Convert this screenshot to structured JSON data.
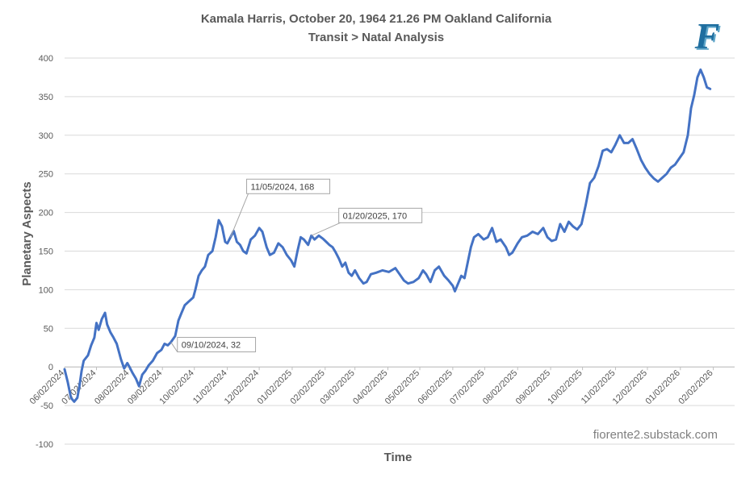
{
  "chart_data": {
    "type": "line",
    "title": "Kamala Harris, October 20, 1964 21.26 PM Oakland California",
    "subtitle": "Transit > Natal Analysis",
    "xlabel": "Time",
    "ylabel": "Planetary Aspects",
    "ylim": [
      -100,
      400
    ],
    "yticks": [
      -100,
      -50,
      0,
      50,
      100,
      150,
      200,
      250,
      300,
      350,
      400
    ],
    "xlim": [
      "2024-06-02",
      "2026-02-22"
    ],
    "xticks": [
      "06/02/2024",
      "07/02/2024",
      "08/02/2024",
      "09/02/2024",
      "10/02/2024",
      "11/02/2024",
      "12/02/2024",
      "01/02/2025",
      "02/02/2025",
      "03/02/2025",
      "04/02/2025",
      "05/02/2025",
      "06/02/2025",
      "07/02/2025",
      "08/02/2025",
      "09/02/2025",
      "10/02/2025",
      "11/02/2025",
      "12/02/2025",
      "01/02/2026",
      "02/02/2026"
    ],
    "grid": true,
    "line_color": "#4472C4",
    "series": [
      {
        "points": [
          [
            "2024-06-02",
            -3
          ],
          [
            "2024-06-05",
            -20
          ],
          [
            "2024-06-08",
            -40
          ],
          [
            "2024-06-11",
            -45
          ],
          [
            "2024-06-14",
            -40
          ],
          [
            "2024-06-16",
            -25
          ],
          [
            "2024-06-18",
            -5
          ],
          [
            "2024-06-20",
            8
          ],
          [
            "2024-06-24",
            15
          ],
          [
            "2024-06-27",
            28
          ],
          [
            "2024-06-30",
            38
          ],
          [
            "2024-07-02",
            57
          ],
          [
            "2024-07-04",
            48
          ],
          [
            "2024-07-07",
            62
          ],
          [
            "2024-07-10",
            70
          ],
          [
            "2024-07-12",
            55
          ],
          [
            "2024-07-15",
            45
          ],
          [
            "2024-07-18",
            38
          ],
          [
            "2024-07-21",
            30
          ],
          [
            "2024-07-23",
            20
          ],
          [
            "2024-07-25",
            10
          ],
          [
            "2024-07-28",
            -2
          ],
          [
            "2024-07-31",
            5
          ],
          [
            "2024-08-02",
            0
          ],
          [
            "2024-08-05",
            -8
          ],
          [
            "2024-08-08",
            -15
          ],
          [
            "2024-08-11",
            -25
          ],
          [
            "2024-08-14",
            -10
          ],
          [
            "2024-08-17",
            -5
          ],
          [
            "2024-08-20",
            2
          ],
          [
            "2024-08-24",
            8
          ],
          [
            "2024-08-28",
            18
          ],
          [
            "2024-09-01",
            22
          ],
          [
            "2024-09-04",
            30
          ],
          [
            "2024-09-07",
            28
          ],
          [
            "2024-09-10",
            32
          ],
          [
            "2024-09-14",
            40
          ],
          [
            "2024-09-17",
            60
          ],
          [
            "2024-09-20",
            70
          ],
          [
            "2024-09-23",
            80
          ],
          [
            "2024-09-27",
            85
          ],
          [
            "2024-10-01",
            90
          ],
          [
            "2024-10-03",
            100
          ],
          [
            "2024-10-06",
            118
          ],
          [
            "2024-10-09",
            125
          ],
          [
            "2024-10-12",
            130
          ],
          [
            "2024-10-15",
            145
          ],
          [
            "2024-10-19",
            150
          ],
          [
            "2024-10-22",
            168
          ],
          [
            "2024-10-25",
            190
          ],
          [
            "2024-10-28",
            182
          ],
          [
            "2024-10-31",
            162
          ],
          [
            "2024-11-02",
            160
          ],
          [
            "2024-11-05",
            168
          ],
          [
            "2024-11-08",
            176
          ],
          [
            "2024-11-11",
            162
          ],
          [
            "2024-11-14",
            158
          ],
          [
            "2024-11-17",
            150
          ],
          [
            "2024-11-20",
            147
          ],
          [
            "2024-11-24",
            165
          ],
          [
            "2024-11-28",
            170
          ],
          [
            "2024-12-02",
            180
          ],
          [
            "2024-12-05",
            175
          ],
          [
            "2024-12-09",
            155
          ],
          [
            "2024-12-12",
            145
          ],
          [
            "2024-12-16",
            148
          ],
          [
            "2024-12-20",
            160
          ],
          [
            "2024-12-24",
            155
          ],
          [
            "2024-12-28",
            145
          ],
          [
            "2025-01-01",
            138
          ],
          [
            "2025-01-04",
            130
          ],
          [
            "2025-01-07",
            150
          ],
          [
            "2025-01-10",
            168
          ],
          [
            "2025-01-13",
            165
          ],
          [
            "2025-01-17",
            158
          ],
          [
            "2025-01-20",
            170
          ],
          [
            "2025-01-23",
            165
          ],
          [
            "2025-01-27",
            170
          ],
          [
            "2025-01-31",
            166
          ],
          [
            "2025-02-03",
            162
          ],
          [
            "2025-02-06",
            158
          ],
          [
            "2025-02-09",
            155
          ],
          [
            "2025-02-12",
            148
          ],
          [
            "2025-02-15",
            140
          ],
          [
            "2025-02-18",
            130
          ],
          [
            "2025-02-21",
            135
          ],
          [
            "2025-02-24",
            122
          ],
          [
            "2025-02-27",
            118
          ],
          [
            "2025-03-02",
            125
          ],
          [
            "2025-03-06",
            115
          ],
          [
            "2025-03-10",
            108
          ],
          [
            "2025-03-13",
            110
          ],
          [
            "2025-03-17",
            120
          ],
          [
            "2025-03-22",
            122
          ],
          [
            "2025-03-28",
            125
          ],
          [
            "2025-04-03",
            123
          ],
          [
            "2025-04-09",
            128
          ],
          [
            "2025-04-13",
            120
          ],
          [
            "2025-04-17",
            112
          ],
          [
            "2025-04-21",
            108
          ],
          [
            "2025-04-26",
            110
          ],
          [
            "2025-05-01",
            115
          ],
          [
            "2025-05-05",
            125
          ],
          [
            "2025-05-08",
            120
          ],
          [
            "2025-05-12",
            110
          ],
          [
            "2025-05-16",
            125
          ],
          [
            "2025-05-20",
            130
          ],
          [
            "2025-05-25",
            118
          ],
          [
            "2025-05-29",
            112
          ],
          [
            "2025-06-02",
            105
          ],
          [
            "2025-06-04",
            98
          ],
          [
            "2025-06-07",
            108
          ],
          [
            "2025-06-10",
            118
          ],
          [
            "2025-06-13",
            115
          ],
          [
            "2025-06-16",
            135
          ],
          [
            "2025-06-19",
            155
          ],
          [
            "2025-06-22",
            168
          ],
          [
            "2025-06-26",
            172
          ],
          [
            "2025-07-01",
            165
          ],
          [
            "2025-07-05",
            168
          ],
          [
            "2025-07-09",
            180
          ],
          [
            "2025-07-13",
            162
          ],
          [
            "2025-07-17",
            165
          ],
          [
            "2025-07-22",
            155
          ],
          [
            "2025-07-25",
            145
          ],
          [
            "2025-07-28",
            148
          ],
          [
            "2025-08-02",
            160
          ],
          [
            "2025-08-06",
            168
          ],
          [
            "2025-08-11",
            170
          ],
          [
            "2025-08-16",
            175
          ],
          [
            "2025-08-21",
            172
          ],
          [
            "2025-08-26",
            180
          ],
          [
            "2025-08-30",
            168
          ],
          [
            "2025-09-03",
            163
          ],
          [
            "2025-09-07",
            165
          ],
          [
            "2025-09-11",
            185
          ],
          [
            "2025-09-15",
            175
          ],
          [
            "2025-09-19",
            188
          ],
          [
            "2025-09-23",
            182
          ],
          [
            "2025-09-27",
            178
          ],
          [
            "2025-10-01",
            185
          ],
          [
            "2025-10-05",
            210
          ],
          [
            "2025-10-09",
            238
          ],
          [
            "2025-10-13",
            245
          ],
          [
            "2025-10-17",
            260
          ],
          [
            "2025-10-21",
            280
          ],
          [
            "2025-10-25",
            282
          ],
          [
            "2025-10-29",
            278
          ],
          [
            "2025-11-02",
            288
          ],
          [
            "2025-11-06",
            300
          ],
          [
            "2025-11-10",
            290
          ],
          [
            "2025-11-14",
            290
          ],
          [
            "2025-11-18",
            295
          ],
          [
            "2025-11-22",
            282
          ],
          [
            "2025-11-26",
            268
          ],
          [
            "2025-11-30",
            258
          ],
          [
            "2025-12-04",
            250
          ],
          [
            "2025-12-08",
            244
          ],
          [
            "2025-12-12",
            240
          ],
          [
            "2025-12-16",
            245
          ],
          [
            "2025-12-20",
            250
          ],
          [
            "2025-12-24",
            258
          ],
          [
            "2025-12-28",
            262
          ],
          [
            "2026-01-01",
            270
          ],
          [
            "2026-01-05",
            278
          ],
          [
            "2026-01-09",
            300
          ],
          [
            "2026-01-12",
            335
          ],
          [
            "2026-01-15",
            352
          ],
          [
            "2026-01-18",
            375
          ],
          [
            "2026-01-21",
            385
          ],
          [
            "2026-01-24",
            375
          ],
          [
            "2026-01-27",
            362
          ],
          [
            "2026-01-30",
            360
          ]
        ]
      }
    ],
    "annotations": [
      {
        "x": "2024-09-10",
        "y": 32,
        "label": "09/10/2024, 32"
      },
      {
        "x": "2024-11-05",
        "y": 168,
        "label": "11/05/2024, 168"
      },
      {
        "x": "2025-01-20",
        "y": 170,
        "label": "01/20/2025, 170"
      }
    ],
    "watermark": "fiorente2.substack.com",
    "logo": "F"
  }
}
